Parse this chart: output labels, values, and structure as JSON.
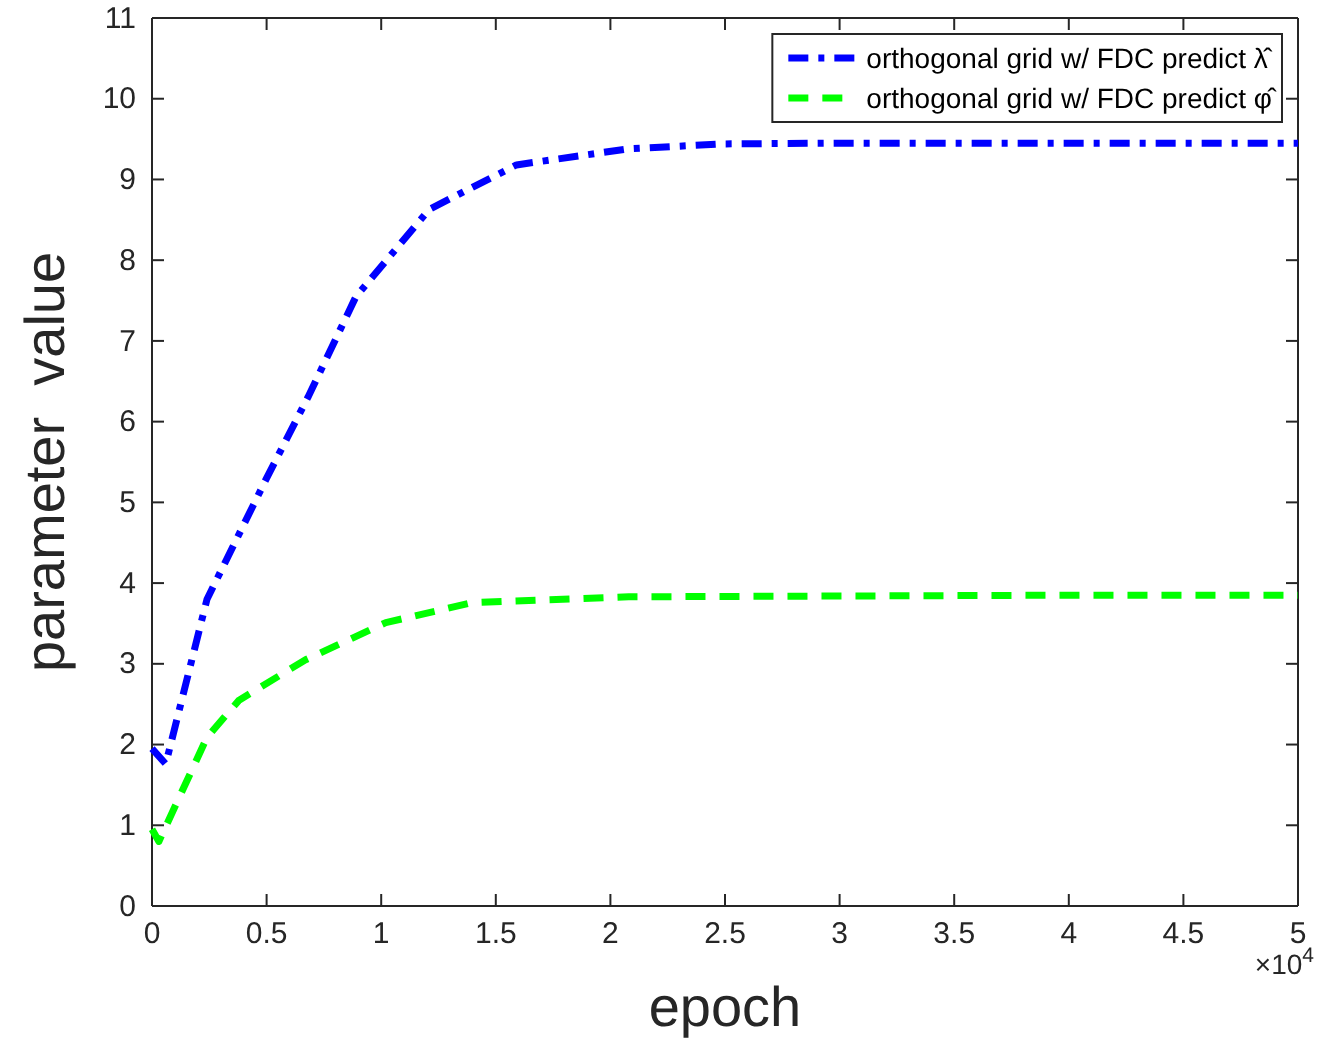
{
  "chart_data": {
    "type": "line",
    "xlabel": "epoch",
    "ylabel": "parameter  value",
    "annotations": [
      "×10$^{4}$"
    ],
    "xlim": [
      0,
      5
    ],
    "xticks": [
      0,
      0.5,
      1,
      1.5,
      2,
      2.5,
      3,
      3.5,
      4,
      4.5,
      5
    ],
    "ylim": [
      0,
      11
    ],
    "yticks": [
      0,
      1,
      2,
      3,
      4,
      5,
      6,
      7,
      8,
      9,
      10,
      11
    ],
    "legend": "top right",
    "grid": false,
    "series": [
      {
        "name": "orthogonal grid w/ FDC predict λ̂",
        "color": "#0000ff",
        "line_style": "dashdot",
        "x": [
          0,
          0.06,
          0.24,
          0.5,
          0.68,
          0.89,
          1.21,
          1.59,
          2.08,
          2.49,
          3,
          4,
          5
        ],
        "values": [
          1.95,
          1.76,
          3.8,
          5.3,
          6.3,
          7.55,
          8.63,
          9.18,
          9.38,
          9.44,
          9.45,
          9.45,
          9.45
        ]
      },
      {
        "name": "orthogonal grid w/ FDC predict φ̂",
        "color": "#00ff00",
        "line_style": "dashed",
        "x": [
          0,
          0.03,
          0.24,
          0.38,
          0.67,
          1.02,
          1.4,
          2.08,
          3,
          4,
          5
        ],
        "values": [
          0.95,
          0.8,
          2.09,
          2.55,
          3.05,
          3.51,
          3.76,
          3.83,
          3.84,
          3.85,
          3.85
        ]
      }
    ]
  }
}
